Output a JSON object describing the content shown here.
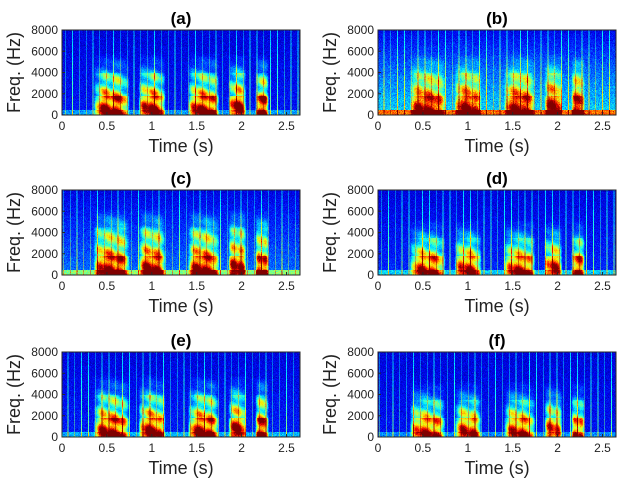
{
  "figure_type": "spectrogram panel grid",
  "colors": {
    "background": "#0a0a8f",
    "axis": "#262626",
    "text": "#222222"
  },
  "chart_data": [
    {
      "type": "heatmap",
      "panel": "a",
      "title": "(a)",
      "xlabel": "Time (s)",
      "ylabel": "Freq. (Hz)",
      "xlim": [
        0,
        2.65
      ],
      "ylim": [
        0,
        8000
      ],
      "xticks": [
        "0",
        "0.5",
        "1",
        "1.5",
        "2",
        "2.5"
      ],
      "yticks": [
        "0",
        "2000",
        "4000",
        "6000",
        "8000"
      ],
      "xtick_values": [
        0,
        0.5,
        1,
        1.5,
        2,
        2.5
      ],
      "ytick_values": [
        0,
        2000,
        4000,
        6000,
        8000
      ],
      "speech_segments": [
        [
          0.35,
          0.75
        ],
        [
          0.85,
          1.15
        ],
        [
          1.4,
          1.75
        ],
        [
          1.85,
          2.05
        ],
        [
          2.15,
          2.3
        ]
      ],
      "noise_level": 0.08,
      "max_freq_hz": 4000,
      "harmonic_strength": 1.0
    },
    {
      "type": "heatmap",
      "panel": "b",
      "title": "(b)",
      "xlabel": "Time (s)",
      "ylabel": "Freq. (Hz)",
      "xlim": [
        0,
        2.65
      ],
      "ylim": [
        0,
        8000
      ],
      "xticks": [
        "0",
        "0.5",
        "1",
        "1.5",
        "2",
        "2.5"
      ],
      "yticks": [
        "0",
        "2000",
        "4000",
        "6000",
        "8000"
      ],
      "xtick_values": [
        0,
        0.5,
        1,
        1.5,
        2,
        2.5
      ],
      "ytick_values": [
        0,
        2000,
        4000,
        6000,
        8000
      ],
      "speech_segments": [
        [
          0.35,
          0.75
        ],
        [
          0.85,
          1.15
        ],
        [
          1.4,
          1.75
        ],
        [
          1.85,
          2.05
        ],
        [
          2.15,
          2.3
        ]
      ],
      "noise_level": 0.45,
      "max_freq_hz": 4000,
      "harmonic_strength": 0.7
    },
    {
      "type": "heatmap",
      "panel": "c",
      "title": "(c)",
      "xlabel": "Time (s)",
      "ylabel": "Freq. (Hz)",
      "xlim": [
        0,
        2.65
      ],
      "ylim": [
        0,
        8000
      ],
      "xticks": [
        "0",
        "0.5",
        "1",
        "1.5",
        "2",
        "2.5"
      ],
      "yticks": [
        "0",
        "2000",
        "4000",
        "6000",
        "8000"
      ],
      "xtick_values": [
        0,
        0.5,
        1,
        1.5,
        2,
        2.5
      ],
      "ytick_values": [
        0,
        2000,
        4000,
        6000,
        8000
      ],
      "speech_segments": [
        [
          0.35,
          0.75
        ],
        [
          0.85,
          1.15
        ],
        [
          1.4,
          1.75
        ],
        [
          1.85,
          2.05
        ],
        [
          2.15,
          2.3
        ]
      ],
      "noise_level": 0.25,
      "max_freq_hz": 4500,
      "harmonic_strength": 0.85
    },
    {
      "type": "heatmap",
      "panel": "d",
      "title": "(d)",
      "xlabel": "Time (s)",
      "ylabel": "Freq. (Hz)",
      "xlim": [
        0,
        2.65
      ],
      "ylim": [
        0,
        8000
      ],
      "xticks": [
        "0",
        "0.5",
        "1",
        "1.5",
        "2",
        "2.5"
      ],
      "yticks": [
        "0",
        "2000",
        "4000",
        "6000",
        "8000"
      ],
      "xtick_values": [
        0,
        0.5,
        1,
        1.5,
        2,
        2.5
      ],
      "ytick_values": [
        0,
        2000,
        4000,
        6000,
        8000
      ],
      "speech_segments": [
        [
          0.35,
          0.75
        ],
        [
          0.85,
          1.15
        ],
        [
          1.4,
          1.75
        ],
        [
          1.85,
          2.05
        ],
        [
          2.15,
          2.3
        ]
      ],
      "noise_level": 0.12,
      "max_freq_hz": 3500,
      "harmonic_strength": 0.8
    },
    {
      "type": "heatmap",
      "panel": "e",
      "title": "(e)",
      "xlabel": "Time (s)",
      "ylabel": "Freq. (Hz)",
      "xlim": [
        0,
        2.65
      ],
      "ylim": [
        0,
        8000
      ],
      "xticks": [
        "0",
        "0.5",
        "1",
        "1.5",
        "2",
        "2.5"
      ],
      "yticks": [
        "0",
        "2000",
        "4000",
        "6000",
        "8000"
      ],
      "xtick_values": [
        0,
        0.5,
        1,
        1.5,
        2,
        2.5
      ],
      "ytick_values": [
        0,
        2000,
        4000,
        6000,
        8000
      ],
      "speech_segments": [
        [
          0.35,
          0.75
        ],
        [
          0.85,
          1.15
        ],
        [
          1.4,
          1.75
        ],
        [
          1.85,
          2.05
        ],
        [
          2.15,
          2.3
        ]
      ],
      "noise_level": 0.1,
      "max_freq_hz": 4000,
      "harmonic_strength": 0.95
    },
    {
      "type": "heatmap",
      "panel": "f",
      "title": "(f)",
      "xlabel": "Time (s)",
      "ylabel": "Freq. (Hz)",
      "xlim": [
        0,
        2.65
      ],
      "ylim": [
        0,
        8000
      ],
      "xticks": [
        "0",
        "0.5",
        "1",
        "1.5",
        "2",
        "2.5"
      ],
      "yticks": [
        "0",
        "2000",
        "4000",
        "6000",
        "8000"
      ],
      "xtick_values": [
        0,
        0.5,
        1,
        1.5,
        2,
        2.5
      ],
      "ytick_values": [
        0,
        2000,
        4000,
        6000,
        8000
      ],
      "speech_segments": [
        [
          0.35,
          0.75
        ],
        [
          0.85,
          1.15
        ],
        [
          1.4,
          1.75
        ],
        [
          1.85,
          2.05
        ],
        [
          2.15,
          2.3
        ]
      ],
      "noise_level": 0.07,
      "max_freq_hz": 3500,
      "harmonic_strength": 0.8
    }
  ]
}
